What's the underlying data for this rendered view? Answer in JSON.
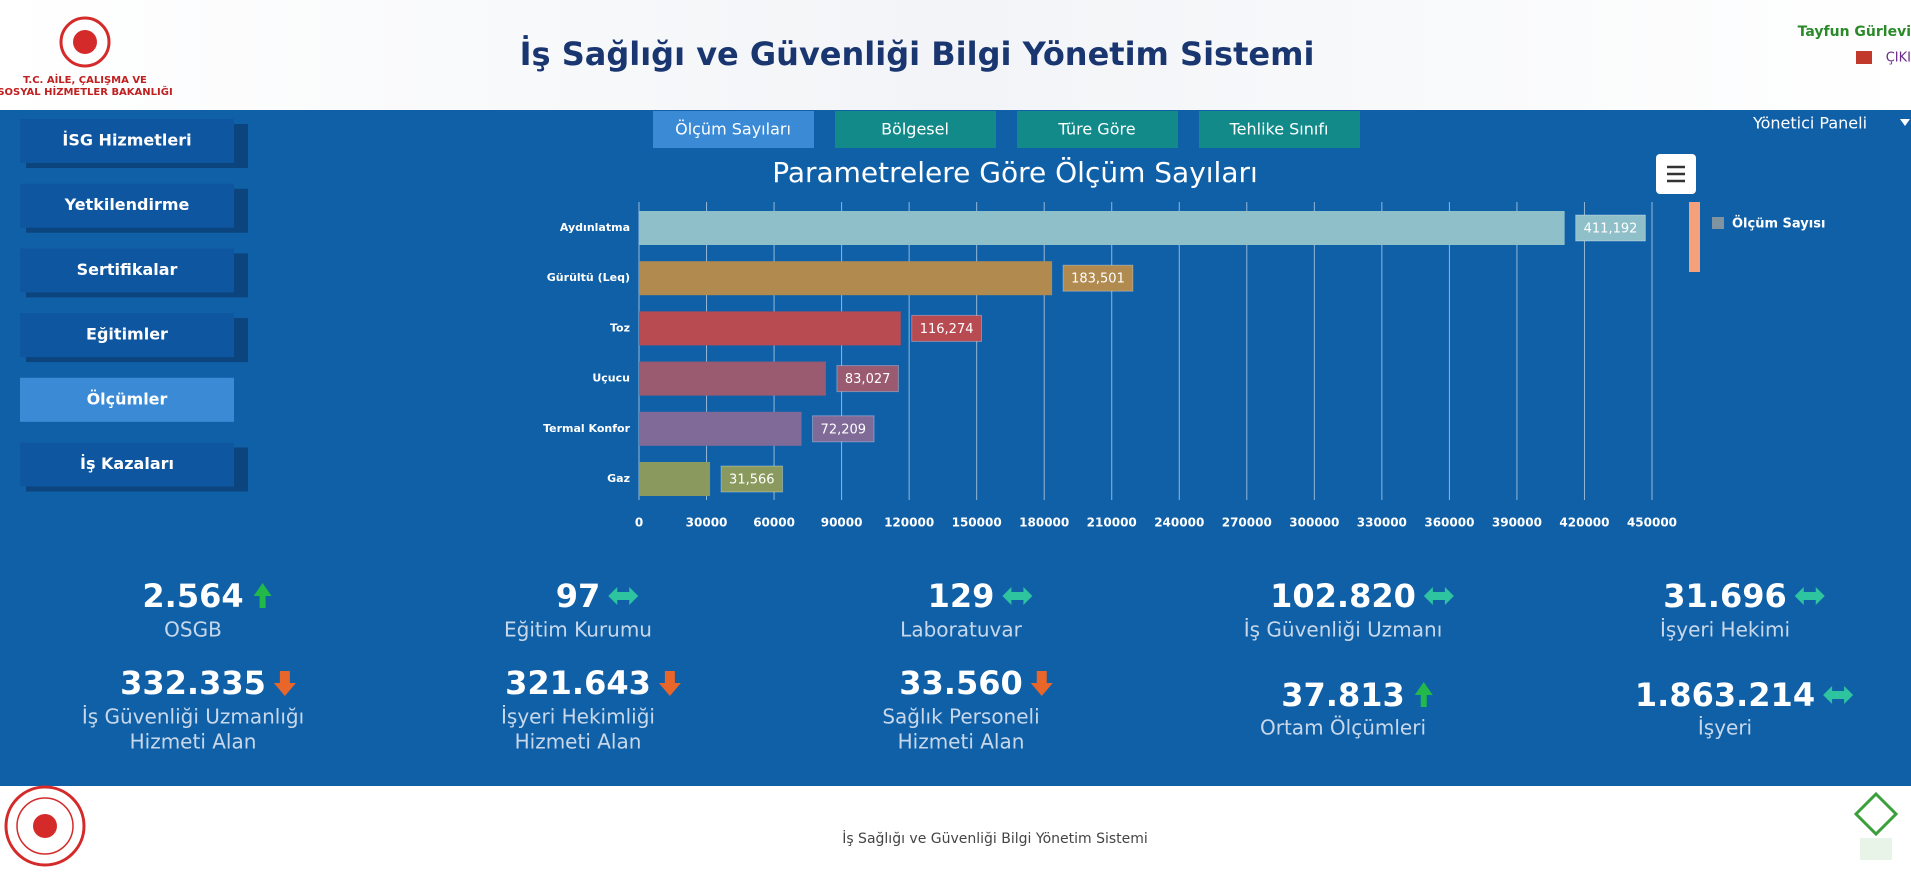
{
  "header": {
    "title": "İş Sağlığı ve Güvenliği Bilgi Yönetim Sistemi",
    "logo_lines": [
      "T.C. AİLE, ÇALIŞMA VE",
      "SOSYAL HİZMETLER BAKANLIĞI"
    ],
    "user": "Tayfun Gürlevi",
    "logout": "ÇIKI",
    "admin": "Yönetici Paneli"
  },
  "nav": [
    "İSG Hizmetleri",
    "Yetkilendirme",
    "Sertifikalar",
    "Eğitimler",
    "Ölçümler",
    "İş Kazaları"
  ],
  "nav_active": 4,
  "tabs": [
    "Ölçüm Sayıları",
    "Bölgesel",
    "Türe Göre",
    "Tehlike Sınıfı"
  ],
  "tab_active": 0,
  "chart_data": {
    "type": "hbar",
    "title": "Parametrelere Göre Ölçüm Sayıları",
    "categories": [
      "Aydınlatma",
      "Gürültü (Leq)",
      "Toz",
      "Uçucu",
      "Termal Konfor",
      "Gaz"
    ],
    "series": [
      {
        "name": "Ölçüm Sayısı",
        "color": "#7f93a0",
        "colors": [
          "#8fbfc8",
          "#b08a4e",
          "#b84a52",
          "#9a5a70",
          "#7f6a98",
          "#8a9a5e"
        ],
        "values": [
          411192,
          183501,
          116274,
          83027,
          72209,
          31566
        ],
        "value_labels": [
          "411,192",
          "183,501",
          "116,274",
          "83,027",
          "72,209",
          "31,566"
        ]
      }
    ],
    "xlim": [
      0,
      450000
    ],
    "xticks": [
      0,
      30000,
      60000,
      90000,
      120000,
      150000,
      180000,
      210000,
      240000,
      270000,
      300000,
      330000,
      360000,
      390000,
      420000,
      450000
    ],
    "grid": true
  },
  "stats": [
    {
      "value": "2.564",
      "label": [
        "OSGB"
      ],
      "trend": "up"
    },
    {
      "value": "97",
      "label": [
        "Eğitim Kurumu"
      ],
      "trend": "flat"
    },
    {
      "value": "129",
      "label": [
        "Laboratuvar"
      ],
      "trend": "flat"
    },
    {
      "value": "102.820",
      "label": [
        "İş Güvenliği Uzmanı"
      ],
      "trend": "flat"
    },
    {
      "value": "31.696",
      "label": [
        "İşyeri Hekimi"
      ],
      "trend": "flat"
    },
    {
      "value": "332.335",
      "label": [
        "İş Güvenliği Uzmanlığı",
        "Hizmeti Alan"
      ],
      "trend": "down"
    },
    {
      "value": "321.643",
      "label": [
        "İşyeri Hekimliği",
        "Hizmeti Alan"
      ],
      "trend": "down"
    },
    {
      "value": "33.560",
      "label": [
        "Sağlık Personeli",
        "Hizmeti Alan"
      ],
      "trend": "down"
    },
    {
      "value": "37.813",
      "label": [
        "Ortam Ölçümleri"
      ],
      "trend": "up"
    },
    {
      "value": "1.863.214",
      "label": [
        "İşyeri"
      ],
      "trend": "flat"
    }
  ],
  "footer": {
    "text": "İş Sağlığı ve Güvenliği Bilgi Yönetim Sistemi"
  }
}
